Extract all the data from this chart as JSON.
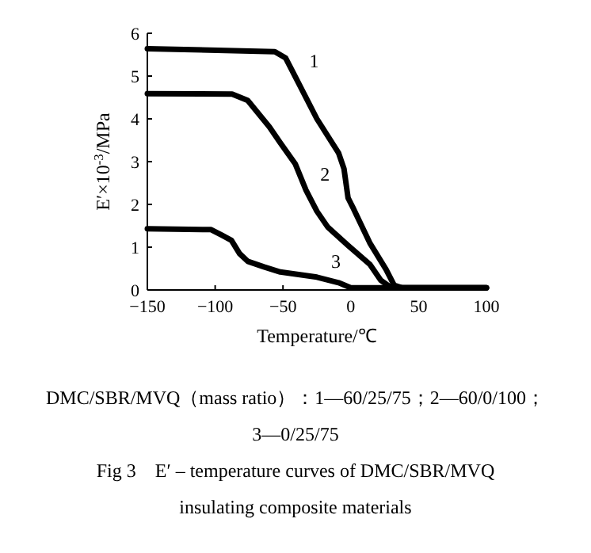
{
  "chart_data": {
    "type": "line",
    "xlabel": "Temperature/℃",
    "ylabel": "E′×10$^{-3}$/MPa",
    "xlim": [
      -150,
      100
    ],
    "ylim": [
      0,
      6
    ],
    "xticks": [
      {
        "value": -150,
        "label": "−150"
      },
      {
        "value": -100,
        "label": "−100"
      },
      {
        "value": -50,
        "label": "−50"
      },
      0,
      50,
      100
    ],
    "yticks": [
      0,
      1,
      2,
      3,
      4,
      5,
      6
    ],
    "marker": "none",
    "line_style": "solid",
    "series": [
      {
        "name": "1",
        "color": "#000000",
        "x": [
          -150,
          -56,
          -48,
          -41,
          -25,
          -9,
          -5,
          -2,
          2,
          14,
          26,
          32,
          38,
          100
        ],
        "values": [
          5.64,
          5.57,
          5.42,
          4.99,
          4.0,
          3.2,
          2.83,
          2.15,
          1.9,
          1.1,
          0.48,
          0.11,
          0.05,
          0.05
        ]
      },
      {
        "name": "2",
        "color": "#000000",
        "x": [
          -150,
          -87.5,
          -76,
          -60,
          -52,
          -41,
          -33,
          -25,
          -17,
          -2,
          14,
          22,
          30,
          100
        ],
        "values": [
          4.59,
          4.58,
          4.43,
          3.81,
          3.44,
          2.95,
          2.33,
          1.84,
          1.47,
          1.04,
          0.6,
          0.23,
          0.05,
          0.05
        ]
      },
      {
        "name": "3",
        "color": "#000000",
        "x": [
          -150,
          -103,
          -95,
          -88,
          -82,
          -76,
          -64,
          -52,
          -25,
          -9,
          0,
          100
        ],
        "values": [
          1.43,
          1.41,
          1.28,
          1.16,
          0.85,
          0.67,
          0.54,
          0.42,
          0.3,
          0.17,
          0.05,
          0.05
        ]
      }
    ],
    "annotations": [
      "DMC/SBR/MVQ（mass ratio）：1—60/25/75；2—60/0/100；3—0/25/75",
      "Fig 3　E′ – temperature curves of DMC/SBR/MVQ insulating composite materials"
    ]
  }
}
